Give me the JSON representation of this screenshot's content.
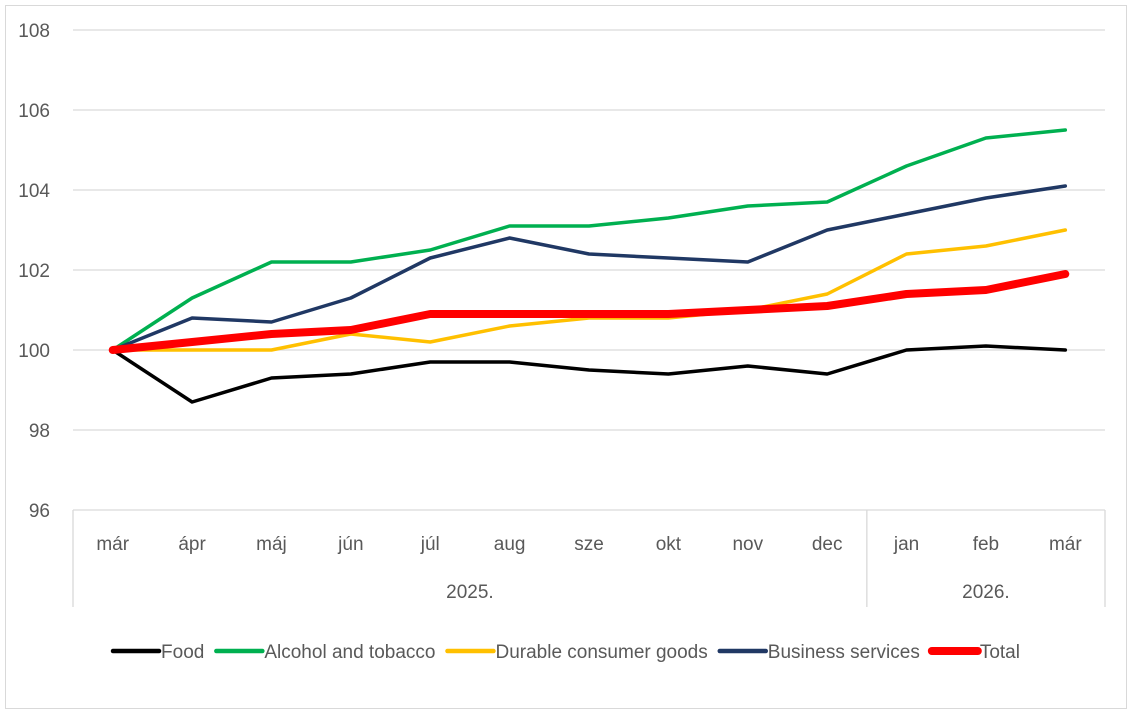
{
  "chart_data": {
    "type": "line",
    "title": "",
    "xlabel": "",
    "ylabel": "",
    "ylim": [
      96,
      108
    ],
    "yticks": [
      96,
      98,
      100,
      102,
      104,
      106,
      108
    ],
    "grid": true,
    "legend_position": "bottom",
    "categories": [
      "már",
      "ápr",
      "máj",
      "jún",
      "júl",
      "aug",
      "sze",
      "okt",
      "nov",
      "dec",
      "jan",
      "feb",
      "már"
    ],
    "groups": [
      {
        "label": "2025.",
        "count": 10
      },
      {
        "label": "2026.",
        "count": 3
      }
    ],
    "series": [
      {
        "name": "Food",
        "color": "#000000",
        "values": [
          100.0,
          98.7,
          99.3,
          99.4,
          99.7,
          99.7,
          99.5,
          99.4,
          99.6,
          99.4,
          100.0,
          100.1,
          100.0
        ]
      },
      {
        "name": "Alcohol and tobacco",
        "color": "#00b050",
        "values": [
          100.0,
          101.3,
          102.2,
          102.2,
          102.5,
          103.1,
          103.1,
          103.3,
          103.6,
          103.7,
          104.6,
          105.3,
          105.5
        ]
      },
      {
        "name": "Durable consumer goods",
        "color": "#ffc000",
        "values": [
          100.0,
          100.0,
          100.0,
          100.4,
          100.2,
          100.6,
          100.8,
          100.8,
          101.0,
          101.4,
          102.4,
          102.6,
          103.0
        ]
      },
      {
        "name": "Business services",
        "color": "#203864",
        "values": [
          100.0,
          100.8,
          100.7,
          101.3,
          102.3,
          102.8,
          102.4,
          102.3,
          102.2,
          103.0,
          103.4,
          103.8,
          104.1
        ]
      },
      {
        "name": "Total",
        "color": "#ff0000",
        "values": [
          100.0,
          100.2,
          100.4,
          100.5,
          100.9,
          100.9,
          100.9,
          100.9,
          101.0,
          101.1,
          101.4,
          101.5,
          101.9
        ]
      }
    ]
  }
}
